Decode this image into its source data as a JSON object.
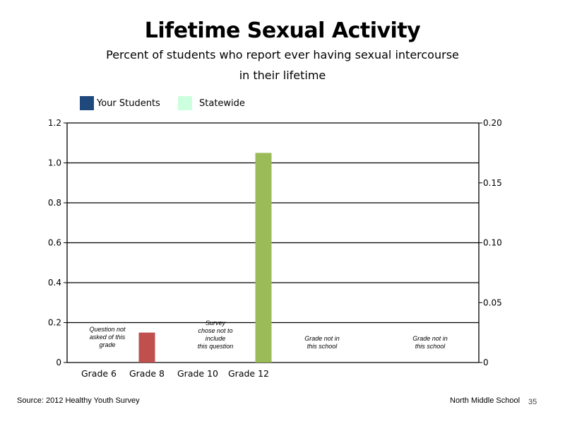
{
  "chart_data": {
    "type": "bar",
    "title": "Lifetime Sexual Activity",
    "subtitle": [
      "Percent of students who report ever having sexual intercourse",
      "in their lifetime"
    ],
    "categories": [
      "Grade 6",
      "Grade 8",
      "Grade 10",
      "Grade 12",
      "",
      ""
    ],
    "series": [
      {
        "name": "Your Students",
        "color": "#1f497d",
        "values": [
          null,
          null,
          null,
          null,
          null,
          null
        ]
      },
      {
        "name": "Statewide",
        "color": "#ccffdd",
        "values": [
          null,
          null,
          null,
          null,
          null,
          null
        ]
      }
    ],
    "displayed_bars": [
      {
        "category": "Grade 8",
        "value": 0.15,
        "color": "#c0504d"
      },
      {
        "category": "Grade 12",
        "value": 1.05,
        "color": "#9bbb59"
      }
    ],
    "annotations": [
      {
        "category_index": 0,
        "lines": [
          "Question not",
          "asked of this",
          "grade"
        ]
      },
      {
        "category_index": 2,
        "lines": [
          "Survey",
          "chose not to",
          "include",
          "this question"
        ]
      },
      {
        "category_index": 4,
        "lines": [
          "Grade not in",
          "this school"
        ]
      },
      {
        "category_index": 5,
        "lines": [
          "Grade not in",
          "this school"
        ]
      }
    ],
    "y_left": {
      "min": 0,
      "max": 1.2,
      "ticks": [
        "0",
        "0.2",
        "0.4",
        "0.6",
        "0.8",
        "1.0",
        "1.2"
      ]
    },
    "y_right": {
      "min": 0,
      "max": 0.2,
      "ticks": [
        "0",
        "0.05",
        "0.10",
        "0.15",
        "0.20"
      ]
    },
    "grid": true,
    "legend_position": "top-left"
  },
  "footer": {
    "source": "Source: 2012 Healthy Youth Survey",
    "school": "North Middle School",
    "page": "35"
  }
}
